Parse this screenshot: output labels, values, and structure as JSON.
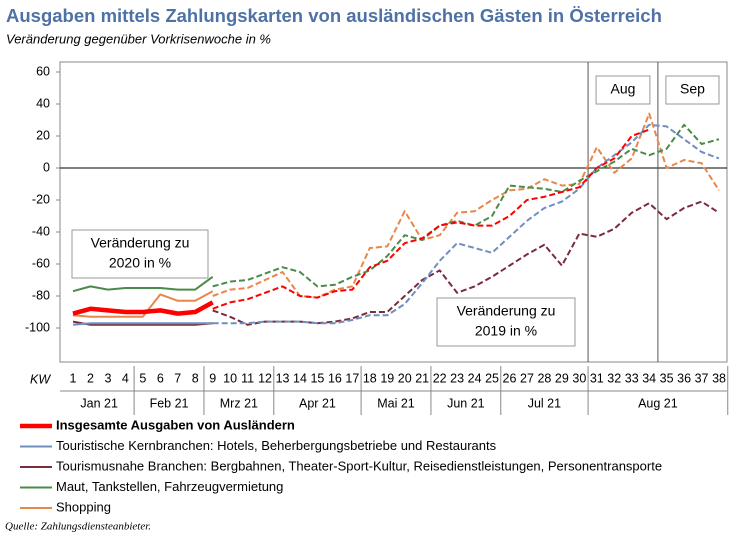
{
  "chart_data": {
    "type": "line",
    "title": "Ausgaben mittels Zahlungskarten von ausländischen Gästen in Österreich",
    "subtitle": "Veränderung gegenüber Vorkrisenwoche in %",
    "x_label": "KW",
    "categories": [
      "1",
      "2",
      "3",
      "4",
      "5",
      "6",
      "7",
      "8",
      "9",
      "10",
      "11",
      "12",
      "13",
      "14",
      "15",
      "16",
      "17",
      "18",
      "19",
      "20",
      "21",
      "22",
      "23",
      "24",
      "25",
      "26",
      "27",
      "28",
      "29",
      "30",
      "31",
      "32",
      "33",
      "34",
      "35",
      "36",
      "37",
      "38"
    ],
    "months": [
      {
        "label": "Jan 21",
        "from": 1,
        "to": 4
      },
      {
        "label": "Feb 21",
        "from": 5,
        "to": 8
      },
      {
        "label": "Mrz 21",
        "from": 9,
        "to": 12
      },
      {
        "label": "Apr 21",
        "from": 13,
        "to": 17
      },
      {
        "label": "Mai 21",
        "from": 18,
        "to": 21
      },
      {
        "label": "Jun 21",
        "from": 22,
        "to": 25
      },
      {
        "label": "Jul 21",
        "from": 26,
        "to": 30
      },
      {
        "label": "Aug 21",
        "from": 31,
        "to": 38
      }
    ],
    "ylim": [
      -120,
      60
    ],
    "yticks": [
      60,
      40,
      20,
      0,
      -20,
      -40,
      -60,
      -80,
      -100
    ],
    "period_labels": [
      "Aug",
      "Sep"
    ],
    "annotations": [
      {
        "lines": [
          "Veränderung zu",
          "2020 in %"
        ]
      },
      {
        "lines": [
          "Veränderung zu",
          "2019 in %"
        ]
      }
    ],
    "series": [
      {
        "name": "Insgesamte Ausgaben von Ausländern",
        "color": "#ff0000",
        "values": [
          -91,
          -88,
          -89,
          -90,
          -90,
          -89,
          -91,
          -90,
          -84,
          null,
          null,
          null,
          null,
          null,
          null,
          null,
          null,
          null,
          null,
          null,
          null,
          null,
          null,
          null,
          null,
          null,
          null,
          null,
          null,
          null,
          null,
          null,
          null,
          null,
          null,
          null,
          null,
          null
        ],
        "values_2019": [
          null,
          null,
          null,
          null,
          null,
          null,
          null,
          null,
          -88,
          -84,
          -82,
          -78,
          -74,
          -80,
          -81,
          -77,
          -76,
          -62,
          -58,
          -47,
          -44,
          -36,
          -34,
          -36,
          -36,
          -30,
          -20,
          -18,
          -15,
          -12,
          0,
          6,
          20,
          24,
          null,
          null,
          null,
          null
        ]
      },
      {
        "name": "Touristische Kernbranchen: Hotels, Beherbergungsbetriebe und  Restaurants",
        "color": "#6f8fc0",
        "values": [
          -98,
          -97,
          -97,
          -97,
          -97,
          -97,
          -97,
          -97,
          -97,
          null,
          null,
          null,
          null,
          null,
          null,
          null,
          null,
          null,
          null,
          null,
          null,
          null,
          null,
          null,
          null,
          null,
          null,
          null,
          null,
          null,
          null,
          null,
          null,
          null,
          null,
          null,
          null,
          null
        ],
        "values_2019": [
          null,
          null,
          null,
          null,
          null,
          null,
          null,
          null,
          -97,
          -97,
          -97,
          -96,
          -96,
          -96,
          -97,
          -97,
          -95,
          -92,
          -92,
          -85,
          -72,
          -58,
          -47,
          -50,
          -53,
          -43,
          -33,
          -25,
          -21,
          -13,
          0,
          8,
          16,
          27,
          26,
          18,
          10,
          6
        ]
      },
      {
        "name": "Tourismusnahe Branchen: Bergbahnen, Theater-Sport-Kultur, Reisedienstleistungen, Personentransporte",
        "color": "#7b2c3c",
        "values": [
          -96,
          -98,
          -98,
          -98,
          -98,
          -98,
          -98,
          -98,
          -97,
          null,
          null,
          null,
          null,
          null,
          null,
          null,
          null,
          null,
          null,
          null,
          null,
          null,
          null,
          null,
          null,
          null,
          null,
          null,
          null,
          null,
          null,
          null,
          null,
          null,
          null,
          null,
          null,
          null
        ],
        "values_2019": [
          null,
          null,
          null,
          null,
          null,
          null,
          null,
          null,
          -89,
          -93,
          -98,
          -96,
          -96,
          -96,
          -97,
          -96,
          -94,
          -90,
          -90,
          -80,
          -70,
          -64,
          -78,
          -74,
          -68,
          -61,
          -54,
          -48,
          -61,
          -41,
          -43,
          -38,
          -28,
          -22,
          -32,
          -25,
          -21,
          -28
        ]
      },
      {
        "name": "Maut, Tankstellen, Fahrzeugvermietung",
        "color": "#4a8a4a",
        "values": [
          -77,
          -74,
          -76,
          -75,
          -75,
          -75,
          -76,
          -76,
          -68,
          null,
          null,
          null,
          null,
          null,
          null,
          null,
          null,
          null,
          null,
          null,
          null,
          null,
          null,
          null,
          null,
          null,
          null,
          null,
          null,
          null,
          null,
          null,
          null,
          null,
          null,
          null,
          null,
          null
        ],
        "values_2019": [
          null,
          null,
          null,
          null,
          null,
          null,
          null,
          null,
          -74,
          -71,
          -70,
          -66,
          -62,
          -65,
          -74,
          -73,
          -68,
          -64,
          -55,
          -42,
          -45,
          -36,
          -33,
          -36,
          -30,
          -11,
          -12,
          -13,
          -15,
          -8,
          -2,
          4,
          12,
          8,
          12,
          27,
          15,
          18
        ]
      },
      {
        "name": "Shopping",
        "color": "#e8874a",
        "values": [
          -92,
          -93,
          -93,
          -93,
          -93,
          -79,
          -83,
          -83,
          -77,
          null,
          null,
          null,
          null,
          null,
          null,
          null,
          null,
          null,
          null,
          null,
          null,
          null,
          null,
          null,
          null,
          null,
          null,
          null,
          null,
          null,
          null,
          null,
          null,
          null,
          null,
          null,
          null,
          null
        ],
        "values_2019": [
          null,
          null,
          null,
          null,
          null,
          null,
          null,
          null,
          -80,
          -76,
          -75,
          -70,
          -65,
          -80,
          -81,
          -76,
          -74,
          -50,
          -49,
          -27,
          -45,
          -42,
          -28,
          -27,
          -20,
          -14,
          -13,
          -7,
          -11,
          -10,
          13,
          -3,
          6,
          34,
          0,
          5,
          3,
          -14
        ]
      }
    ],
    "source": "Quelle: Zahlungsdiensteanbieter."
  }
}
